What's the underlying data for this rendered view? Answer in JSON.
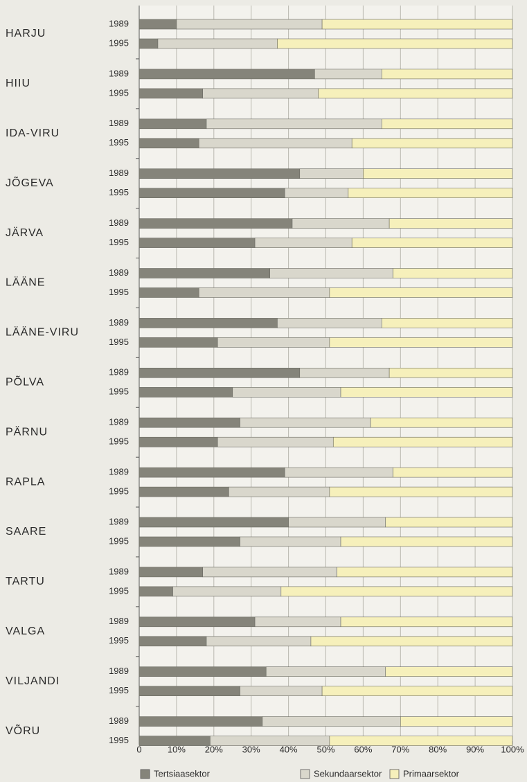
{
  "chart_data": {
    "type": "stacked-bar-horizontal",
    "categories": [
      "HARJU",
      "HIIU",
      "IDA-VIRU",
      "JÕGEVA",
      "JÄRVA",
      "LÄÄNE",
      "LÄÄNE-VIRU",
      "PÕLVA",
      "PÄRNU",
      "RAPLA",
      "SAARE",
      "TARTU",
      "VALGA",
      "VILJANDI",
      "VÕRU"
    ],
    "years": [
      "1989",
      "1995"
    ],
    "series": [
      {
        "name": "Tertsiaasektor",
        "color": "#85847a",
        "values": [
          [
            10,
            5
          ],
          [
            47,
            17
          ],
          [
            18,
            16
          ],
          [
            43,
            39
          ],
          [
            41,
            31
          ],
          [
            35,
            16
          ],
          [
            37,
            21
          ],
          [
            43,
            25
          ],
          [
            27,
            21
          ],
          [
            39,
            24
          ],
          [
            40,
            27
          ],
          [
            17,
            9
          ],
          [
            31,
            18
          ],
          [
            34,
            27
          ],
          [
            33,
            19
          ]
        ]
      },
      {
        "name": "Sekundaarsektor",
        "color": "#d9d7cc",
        "values": [
          [
            39,
            32
          ],
          [
            18,
            31
          ],
          [
            47,
            41
          ],
          [
            17,
            17
          ],
          [
            26,
            26
          ],
          [
            33,
            35
          ],
          [
            28,
            30
          ],
          [
            24,
            29
          ],
          [
            35,
            31
          ],
          [
            29,
            27
          ],
          [
            26,
            27
          ],
          [
            36,
            29
          ],
          [
            23,
            28
          ],
          [
            32,
            22
          ],
          [
            37,
            32
          ]
        ]
      },
      {
        "name": "Primaarsektor",
        "color": "#f6f0bb",
        "values": [
          [
            51,
            63
          ],
          [
            35,
            52
          ],
          [
            35,
            43
          ],
          [
            40,
            44
          ],
          [
            33,
            43
          ],
          [
            32,
            49
          ],
          [
            35,
            49
          ],
          [
            33,
            46
          ],
          [
            38,
            48
          ],
          [
            32,
            49
          ],
          [
            34,
            46
          ],
          [
            47,
            62
          ],
          [
            46,
            54
          ],
          [
            34,
            51
          ],
          [
            30,
            49
          ]
        ]
      }
    ],
    "xlim": [
      0,
      100
    ],
    "xticks": [
      0,
      {
        "value": 10,
        "label": "10%"
      },
      {
        "value": 20,
        "label": "20%"
      },
      {
        "value": 30,
        "label": "30%"
      },
      {
        "value": 40,
        "label": "40%"
      },
      {
        "value": 50,
        "label": "50%"
      },
      {
        "value": 60,
        "label": "60%"
      },
      {
        "value": 70,
        "label": "70%"
      },
      {
        "value": 80,
        "label": "80%"
      },
      {
        "value": 90,
        "label": "90%"
      },
      {
        "value": 100,
        "label": "100%"
      }
    ],
    "grid": true
  }
}
